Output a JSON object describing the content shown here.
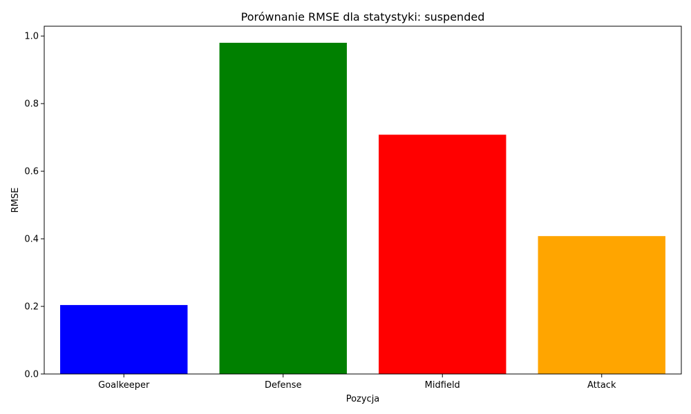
{
  "chart_data": {
    "type": "bar",
    "title": "Porównanie RMSE dla statystyki: suspended",
    "xlabel": "Pozycja",
    "ylabel": "RMSE",
    "categories": [
      "Goalkeeper",
      "Defense",
      "Midfield",
      "Attack"
    ],
    "values": [
      0.204,
      0.98,
      0.708,
      0.408
    ],
    "colors": [
      "#0000ff",
      "#008000",
      "#ff0000",
      "#ffa500"
    ],
    "ylim": [
      0,
      1.029
    ],
    "yticks": [
      0.0,
      0.2,
      0.4,
      0.6,
      0.8,
      1.0
    ],
    "ytick_labels": [
      "0.0",
      "0.2",
      "0.4",
      "0.6",
      "0.8",
      "1.0"
    ],
    "grid": false,
    "legend": "none"
  }
}
